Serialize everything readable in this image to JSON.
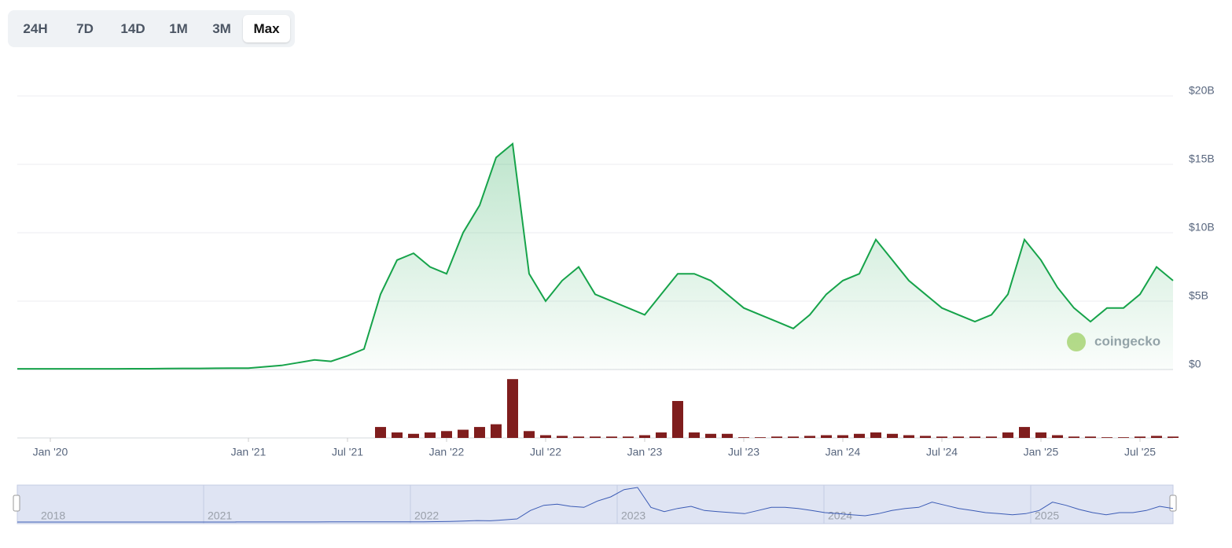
{
  "range_buttons": [
    "24H",
    "7D",
    "14D",
    "1M",
    "3M",
    "Max"
  ],
  "active_button": 5,
  "watermark": "coingecko",
  "navigator": {
    "labels": [
      "2018",
      "2021",
      "2022",
      "2023",
      "2024",
      "2025"
    ]
  },
  "chart_data": {
    "type": "line",
    "x": [
      "2019-11",
      "2019-12",
      "2020-01",
      "2020-02",
      "2020-03",
      "2020-04",
      "2020-05",
      "2020-06",
      "2020-07",
      "2020-08",
      "2020-09",
      "2020-10",
      "2020-11",
      "2020-12",
      "2021-01",
      "2021-02",
      "2021-03",
      "2021-04",
      "2021-05",
      "2021-06",
      "2021-07",
      "2021-08",
      "2021-09",
      "2021-10",
      "2021-11",
      "2021-12",
      "2022-01",
      "2022-02",
      "2022-03",
      "2022-04",
      "2022-05",
      "2022-06",
      "2022-07",
      "2022-08",
      "2022-09",
      "2022-10",
      "2022-11",
      "2022-12",
      "2023-01",
      "2023-02",
      "2023-03",
      "2023-04",
      "2023-05",
      "2023-06",
      "2023-07",
      "2023-08",
      "2023-09",
      "2023-10",
      "2023-11",
      "2023-12",
      "2024-01",
      "2024-02",
      "2024-03",
      "2024-04",
      "2024-05",
      "2024-06",
      "2024-07",
      "2024-08",
      "2024-09",
      "2024-10",
      "2024-11",
      "2024-12",
      "2025-01",
      "2025-02",
      "2025-03",
      "2025-04",
      "2025-05",
      "2025-06",
      "2025-07",
      "2025-08",
      "2025-09"
    ],
    "series": [
      {
        "color": "#16a34a",
        "values": [
          50000000,
          50000000,
          50000000,
          50000000,
          50000000,
          50000000,
          50000000,
          60000000,
          60000000,
          70000000,
          80000000,
          80000000,
          90000000,
          100000000,
          100000000,
          200000000,
          300000000,
          500000000,
          700000000,
          600000000,
          1000000000,
          1500000000,
          5500000000,
          8000000000,
          8500000000,
          7500000000,
          7000000000,
          10000000000,
          12000000000,
          15500000000,
          16500000000,
          7000000000,
          5000000000,
          6500000000,
          7500000000,
          5500000000,
          5000000000,
          4500000000,
          4000000000,
          5500000000,
          7000000000,
          7000000000,
          6500000000,
          5500000000,
          4500000000,
          4000000000,
          3500000000,
          3000000000,
          4000000000,
          5500000000,
          6500000000,
          7000000000,
          9500000000,
          8000000000,
          6500000000,
          5500000000,
          4500000000,
          4000000000,
          3500000000,
          4000000000,
          5500000000,
          9500000000,
          8000000000,
          6000000000,
          4500000000,
          3500000000,
          4500000000,
          4500000000,
          5500000000,
          7500000000,
          6500000000
        ]
      },
      {
        "color": "#7f1d1d",
        "axis": "y2",
        "values": [
          0,
          0,
          0,
          0,
          0,
          0,
          0,
          0,
          0,
          0,
          0,
          0,
          0,
          0,
          0,
          0,
          0,
          0,
          0,
          0,
          0,
          0,
          800000000,
          400000000,
          300000000,
          400000000,
          500000000,
          600000000,
          800000000,
          1000000000,
          4300000000,
          500000000,
          200000000,
          150000000,
          100000000,
          100000000,
          100000000,
          100000000,
          200000000,
          400000000,
          2700000000,
          400000000,
          300000000,
          300000000,
          50000000,
          50000000,
          100000000,
          100000000,
          150000000,
          200000000,
          200000000,
          300000000,
          400000000,
          300000000,
          200000000,
          150000000,
          100000000,
          100000000,
          100000000,
          100000000,
          400000000,
          800000000,
          400000000,
          200000000,
          100000000,
          100000000,
          50000000,
          50000000,
          100000000,
          150000000,
          100000000
        ]
      }
    ],
    "xlim": [
      "2019-11",
      "2025-09"
    ],
    "xticks": [
      {
        "value": "2020-01",
        "label": "Jan '20"
      },
      {
        "value": "2021-01",
        "label": "Jan '21"
      },
      {
        "value": "2021-07",
        "label": "Jul '21"
      },
      {
        "value": "2022-01",
        "label": "Jan '22"
      },
      {
        "value": "2022-07",
        "label": "Jul '22"
      },
      {
        "value": "2023-01",
        "label": "Jan '23"
      },
      {
        "value": "2023-07",
        "label": "Jul '23"
      },
      {
        "value": "2024-01",
        "label": "Jan '24"
      },
      {
        "value": "2024-07",
        "label": "Jul '24"
      },
      {
        "value": "2025-01",
        "label": "Jan '25"
      },
      {
        "value": "2025-07",
        "label": "Jul '25"
      }
    ],
    "ylim": [
      0,
      20000000000
    ],
    "yticks": [
      {
        "value": 0,
        "label": "$0"
      },
      {
        "value": 5000000000,
        "label": "$5B"
      },
      {
        "value": 10000000000,
        "label": "$10B"
      },
      {
        "value": 15000000000,
        "label": "$15B"
      },
      {
        "value": 20000000000,
        "label": "$20B"
      }
    ],
    "y2lim": [
      0,
      5000000000
    ],
    "grid": true
  }
}
